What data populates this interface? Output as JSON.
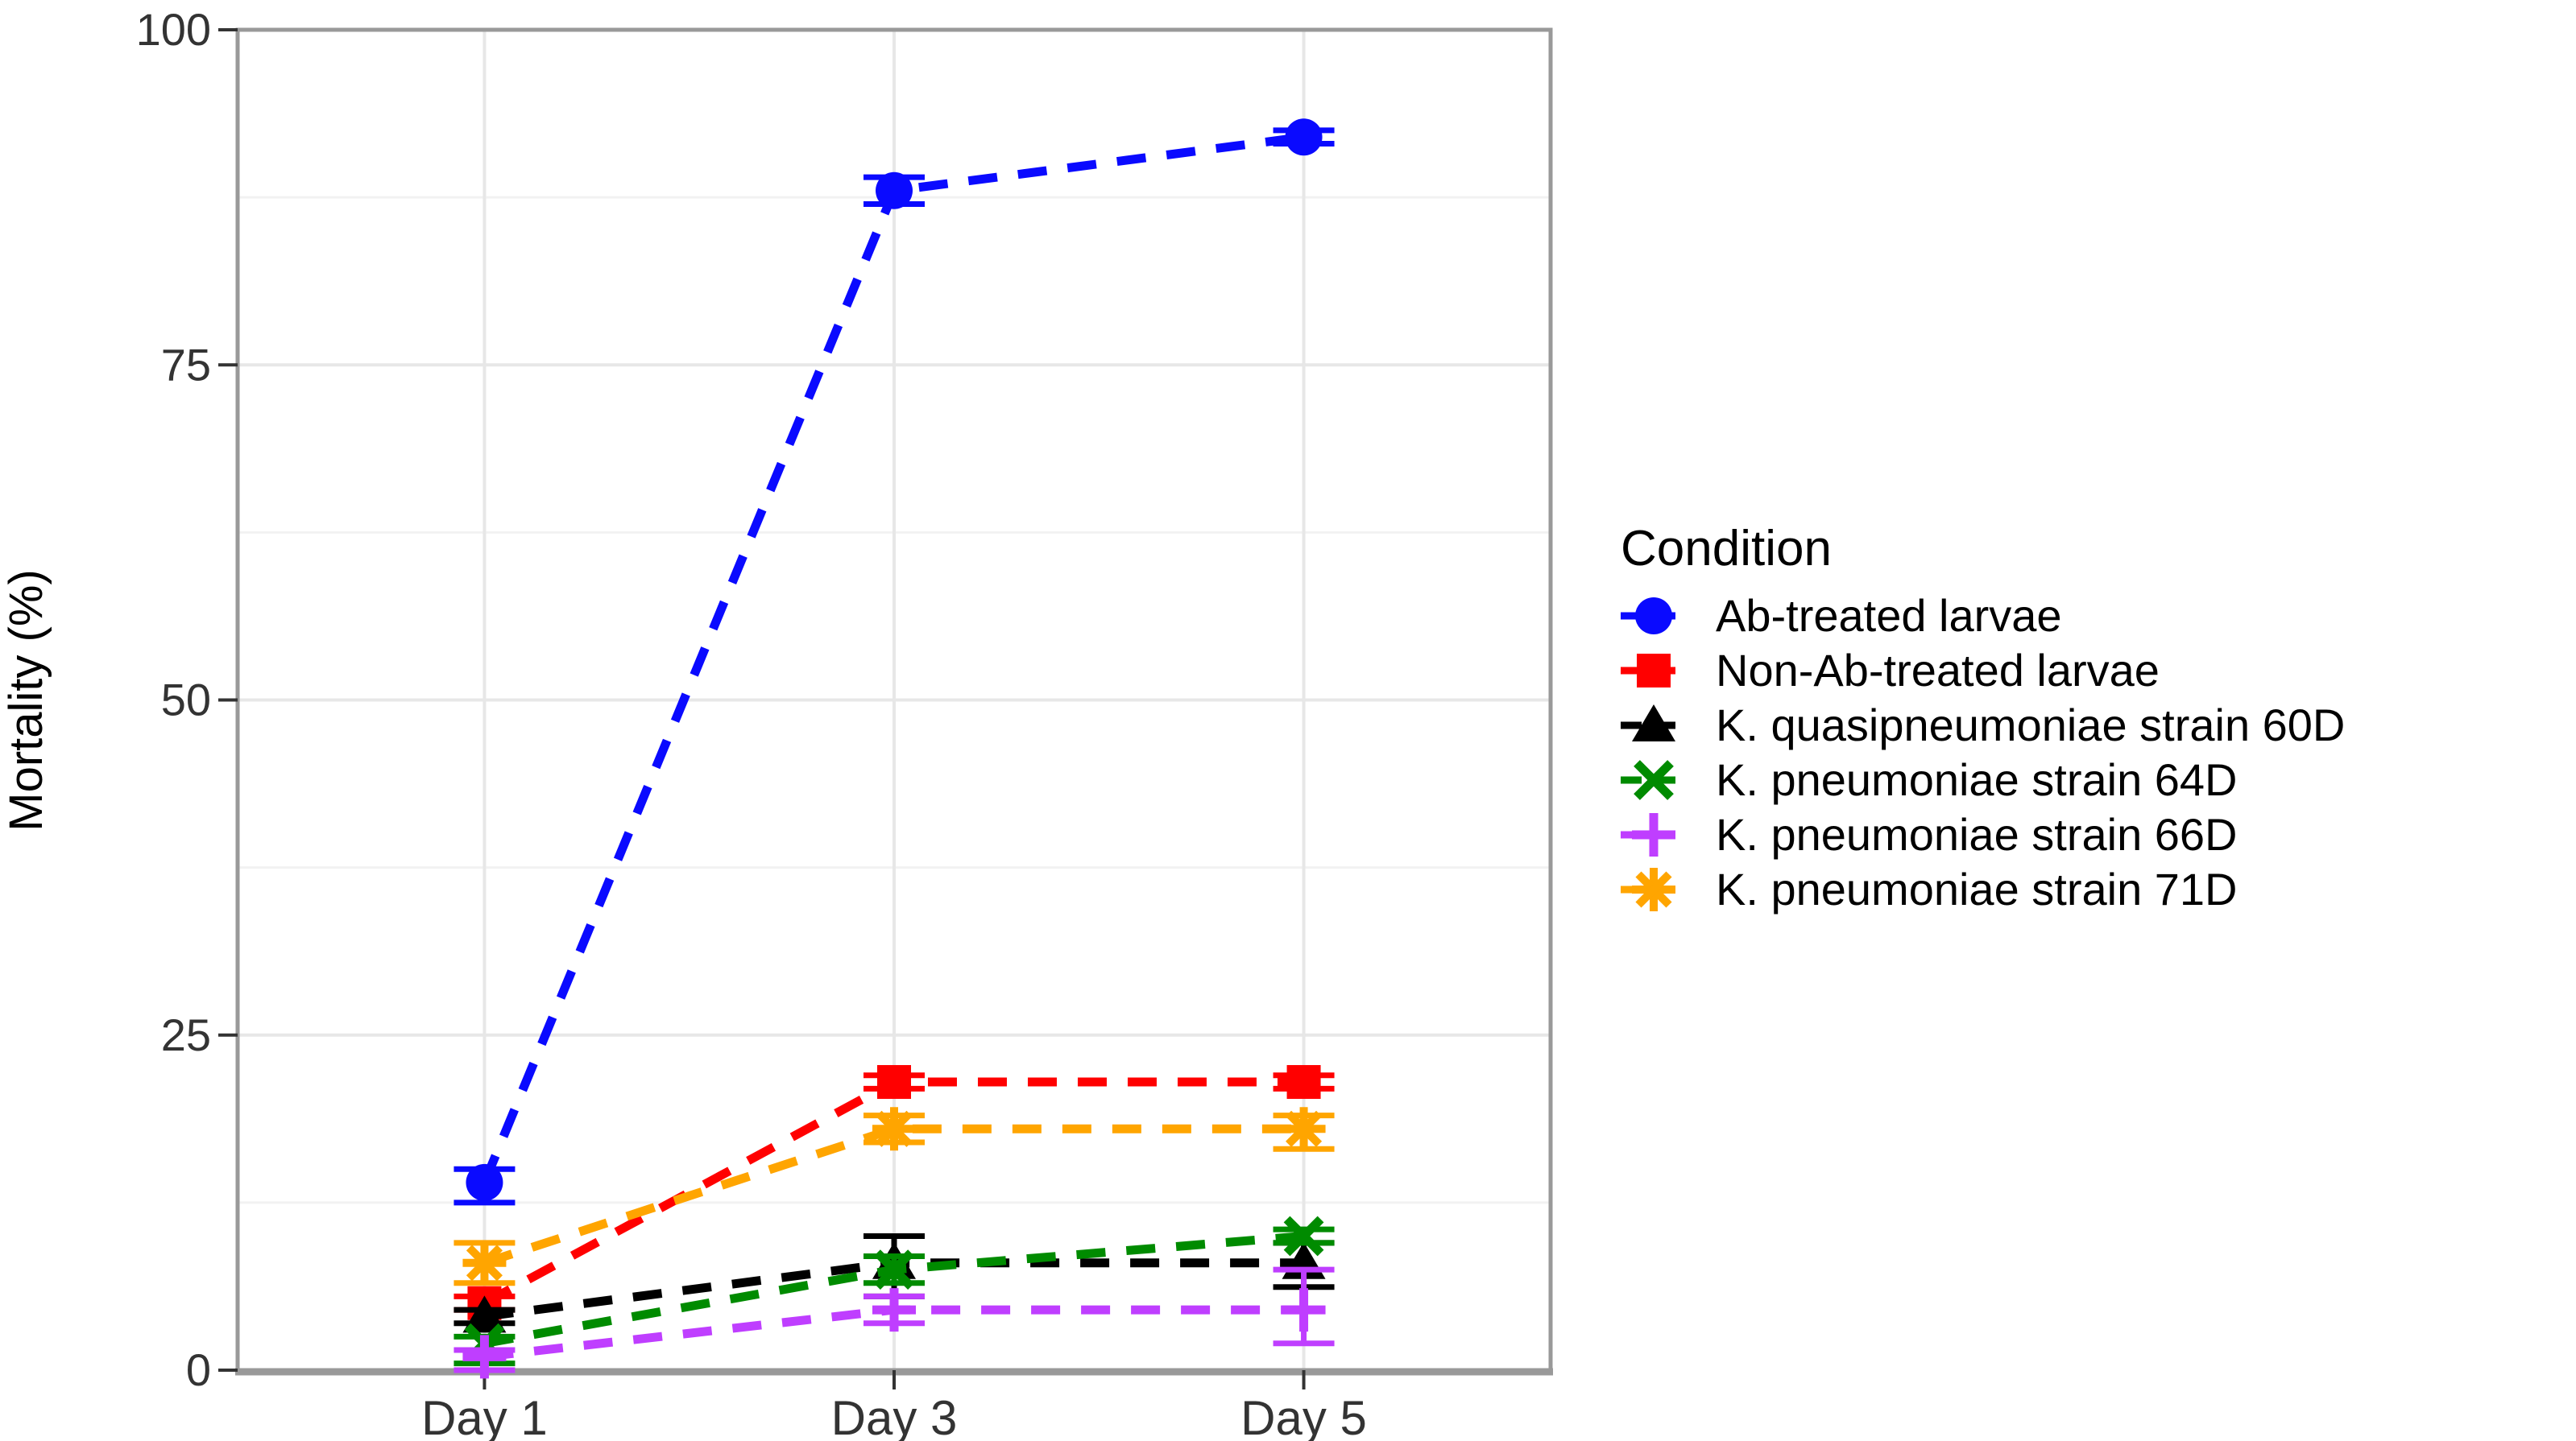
{
  "page": {
    "background": "#FFFFFF"
  },
  "chart_data": {
    "type": "line",
    "title": "",
    "xlabel": "",
    "ylabel": "Mortality (%)",
    "categories": [
      "Day 1",
      "Day 3",
      "Day 5"
    ],
    "ylim": [
      0,
      100
    ],
    "yticks": [
      0,
      25,
      50,
      75,
      100
    ],
    "yticks_minor": [
      12.5,
      37.5,
      62.5,
      87.5
    ],
    "grid": {
      "horizontal_major": true,
      "horizontal_minor": true,
      "vertical_major": true
    },
    "line_style": "dashed",
    "legend": {
      "title": "Condition",
      "position": "right"
    },
    "colors": {
      "grid_major": "#E7E7E7",
      "grid_minor": "#F2F2F2",
      "panel_border": "#999999",
      "tick": "#333333",
      "tick_label": "#333333",
      "axis_title": "#000000",
      "legend_text": "#000000"
    },
    "series": [
      {
        "name": "Ab-treated larvae",
        "color": "#0A0AFF",
        "marker": "circle",
        "values": [
          14,
          88,
          92
        ],
        "error_low": [
          1.5,
          1,
          0.5
        ],
        "error_high": [
          1,
          1,
          0.5
        ]
      },
      {
        "name": "Non-Ab-treated larvae",
        "color": "#FF0000",
        "marker": "square",
        "values": [
          5,
          21.5,
          21.5
        ],
        "error_low": [
          0.5,
          0.5,
          0.5
        ],
        "error_high": [
          0.5,
          0.5,
          0.5
        ]
      },
      {
        "name": "K. quasipneumoniae strain 60D",
        "color": "#000000",
        "marker": "triangle",
        "values": [
          4,
          8,
          8
        ],
        "error_low": [
          0.5,
          2.5,
          1.8
        ],
        "error_high": [
          0.5,
          2,
          1.5
        ]
      },
      {
        "name": "K. pneumoniae strain 64D",
        "color": "#008B00",
        "marker": "x",
        "values": [
          2,
          7.5,
          10
        ],
        "error_low": [
          1.5,
          1,
          0.5
        ],
        "error_high": [
          0.5,
          1,
          0.5
        ]
      },
      {
        "name": "K. pneumoniae strain 66D",
        "color": "#BF3EFF",
        "marker": "plus",
        "values": [
          1,
          4.5,
          4.5
        ],
        "error_low": [
          1,
          1,
          2.5
        ],
        "error_high": [
          0.5,
          1,
          3
        ]
      },
      {
        "name": "K. pneumoniae strain 71D",
        "color": "#FFA500",
        "marker": "asterisk",
        "values": [
          8,
          18,
          18
        ],
        "error_low": [
          1.5,
          1,
          1.5
        ],
        "error_high": [
          1.5,
          1,
          1
        ]
      }
    ]
  }
}
